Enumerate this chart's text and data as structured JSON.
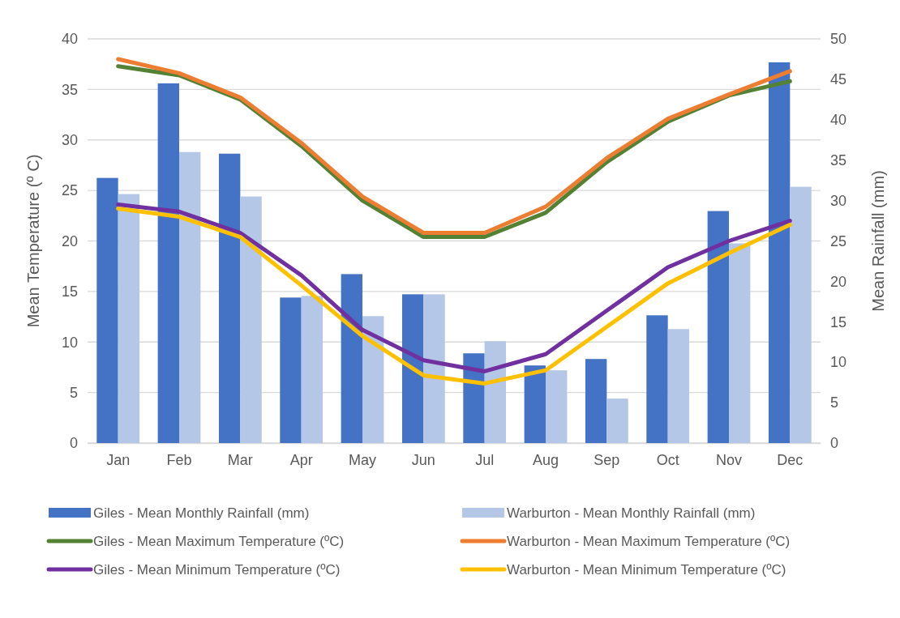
{
  "chart_data": {
    "type": "bar",
    "ylabel": "Mean Temperature (º C)",
    "y2label": "Mean Rainfall (mm)",
    "categories": [
      "Jan",
      "Feb",
      "Mar",
      "Apr",
      "May",
      "Jun",
      "Jul",
      "Aug",
      "Sep",
      "Oct",
      "Nov",
      "Dec"
    ],
    "ylim": [
      0,
      40
    ],
    "yticks": [
      0,
      5,
      10,
      15,
      20,
      25,
      30,
      35,
      40
    ],
    "y2lim": [
      0,
      50
    ],
    "y2ticks": [
      0,
      5,
      10,
      15,
      20,
      25,
      30,
      35,
      40,
      45,
      50
    ],
    "grid": "y",
    "legend": "bottom",
    "series": [
      {
        "name": "Giles - Mean Monthly Rainfall (mm)",
        "axis": "y2",
        "color": "#4472c4",
        "values": [
          32.8,
          44.5,
          35.8,
          18.0,
          20.9,
          18.4,
          11.1,
          9.6,
          10.4,
          15.8,
          28.7,
          47.1
        ]
      },
      {
        "name": "Warburton - Mean Monthly Rainfall (mm)",
        "axis": "y2",
        "color": "#b4c7e7",
        "values": [
          30.8,
          36.0,
          30.5,
          18.2,
          15.7,
          18.4,
          12.6,
          9.0,
          5.5,
          14.1,
          24.7,
          31.7
        ]
      },
      {
        "name": "Giles - Mean Maximum Temperature (ºC)",
        "type": "line",
        "color": "#548235",
        "values": [
          37.3,
          36.4,
          34.0,
          29.4,
          24.0,
          20.4,
          20.4,
          22.8,
          27.8,
          31.8,
          34.4,
          35.8
        ]
      },
      {
        "name": "Warburton - Mean Maximum Temperature (ºC)",
        "type": "line",
        "color": "#ed7d31",
        "values": [
          38.0,
          36.6,
          34.2,
          29.7,
          24.4,
          20.8,
          20.8,
          23.4,
          28.2,
          32.1,
          34.5,
          36.8
        ]
      },
      {
        "name": "Giles - Mean Minimum Temperature (ºC)",
        "type": "line",
        "color": "#7030a0",
        "values": [
          23.6,
          22.9,
          20.8,
          16.6,
          11.2,
          8.2,
          7.1,
          8.8,
          13.1,
          17.4,
          20.0,
          22.0
        ]
      },
      {
        "name": "Warburton - Mean Minimum Temperature (ºC)",
        "type": "line",
        "color": "#ffc000",
        "values": [
          23.2,
          22.4,
          20.4,
          15.6,
          10.6,
          6.7,
          5.9,
          7.2,
          11.5,
          15.8,
          18.8,
          21.6
        ]
      }
    ]
  }
}
